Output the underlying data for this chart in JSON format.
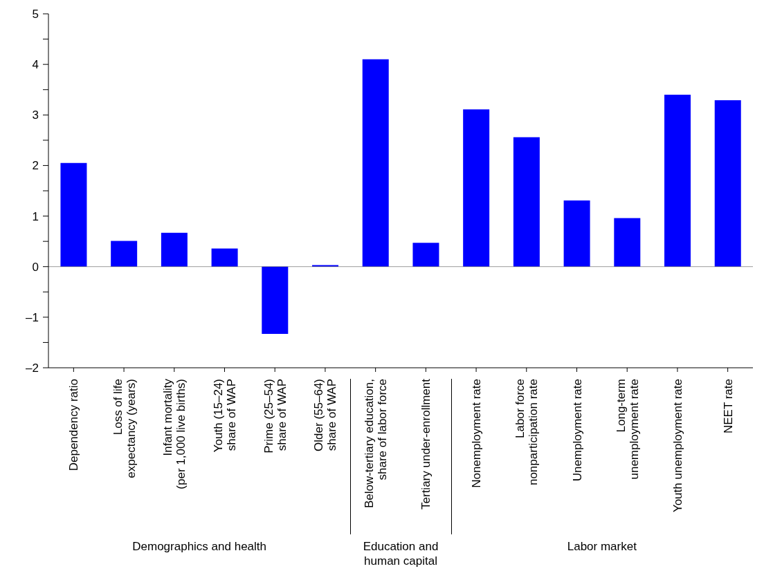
{
  "chart_data": {
    "type": "bar",
    "categories": [
      "Dependency ratio",
      "Loss of life\nexpectancy (years)",
      "Infant mortality\n(per 1,000 live births)",
      "Youth (15–24)\nshare of WAP",
      "Prime (25–54)\nshare of WAP",
      "Older (55–64)\nshare of WAP",
      "Below-tertiary education,\nshare of labor force",
      "Tertiary under-enrollment",
      "Nonemployment rate",
      "Labor force\nnonparticipation rate",
      "Unemployment rate",
      "Long-term\nunemployment rate",
      "Youth unemployment rate",
      "NEET rate"
    ],
    "values": [
      2.05,
      0.51,
      0.67,
      0.36,
      -1.33,
      0.03,
      4.1,
      0.47,
      3.11,
      2.56,
      1.31,
      0.96,
      3.4,
      3.29
    ],
    "color": "#0000ff",
    "ylim": [
      -2,
      5
    ],
    "yticks": [
      {
        "value": -2,
        "label": "–2"
      },
      {
        "value": -1.5,
        "label": null
      },
      {
        "value": -1,
        "label": "–1"
      },
      {
        "value": -0.5,
        "label": null
      },
      0,
      {
        "value": 0.5,
        "label": null
      },
      1,
      {
        "value": 1.5,
        "label": null
      },
      2,
      {
        "value": 2.5,
        "label": null
      },
      3,
      {
        "value": 3.5,
        "label": null
      },
      4,
      {
        "value": 4.5,
        "label": null
      },
      5
    ],
    "ref_lines": [
      {
        "axis": "y",
        "value": 0
      }
    ],
    "annotations": [
      "Demographics and health",
      "Education and human capital",
      "Labor market"
    ],
    "grid": false,
    "legend": false
  }
}
